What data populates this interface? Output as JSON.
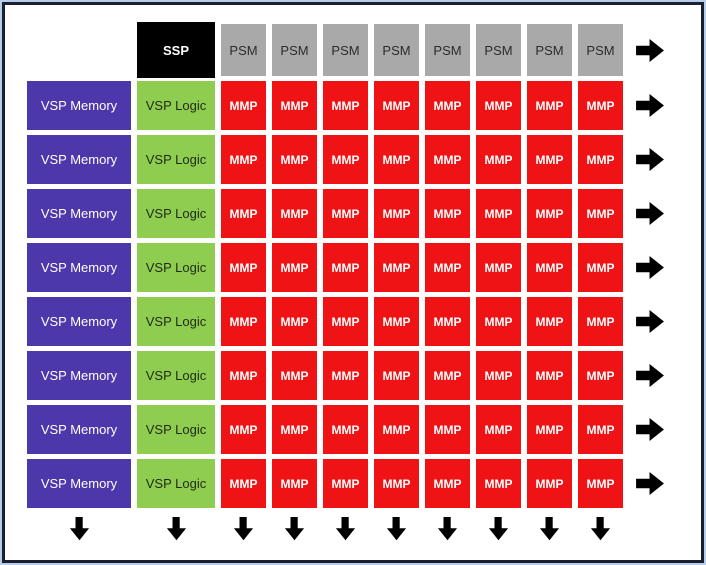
{
  "diagram": {
    "header_row": {
      "ssp_label": "SSP",
      "psm_labels": [
        "PSM",
        "PSM",
        "PSM",
        "PSM",
        "PSM",
        "PSM",
        "PSM",
        "PSM"
      ]
    },
    "body_rows": [
      {
        "memory": "VSP Memory",
        "logic": "VSP Logic",
        "mmp": [
          "MMP",
          "MMP",
          "MMP",
          "MMP",
          "MMP",
          "MMP",
          "MMP",
          "MMP"
        ]
      },
      {
        "memory": "VSP Memory",
        "logic": "VSP Logic",
        "mmp": [
          "MMP",
          "MMP",
          "MMP",
          "MMP",
          "MMP",
          "MMP",
          "MMP",
          "MMP"
        ]
      },
      {
        "memory": "VSP Memory",
        "logic": "VSP Logic",
        "mmp": [
          "MMP",
          "MMP",
          "MMP",
          "MMP",
          "MMP",
          "MMP",
          "MMP",
          "MMP"
        ]
      },
      {
        "memory": "VSP Memory",
        "logic": "VSP Logic",
        "mmp": [
          "MMP",
          "MMP",
          "MMP",
          "MMP",
          "MMP",
          "MMP",
          "MMP",
          "MMP"
        ]
      },
      {
        "memory": "VSP Memory",
        "logic": "VSP Logic",
        "mmp": [
          "MMP",
          "MMP",
          "MMP",
          "MMP",
          "MMP",
          "MMP",
          "MMP",
          "MMP"
        ]
      },
      {
        "memory": "VSP Memory",
        "logic": "VSP Logic",
        "mmp": [
          "MMP",
          "MMP",
          "MMP",
          "MMP",
          "MMP",
          "MMP",
          "MMP",
          "MMP"
        ]
      },
      {
        "memory": "VSP Memory",
        "logic": "VSP Logic",
        "mmp": [
          "MMP",
          "MMP",
          "MMP",
          "MMP",
          "MMP",
          "MMP",
          "MMP",
          "MMP"
        ]
      },
      {
        "memory": "VSP Memory",
        "logic": "VSP Logic",
        "mmp": [
          "MMP",
          "MMP",
          "MMP",
          "MMP",
          "MMP",
          "MMP",
          "MMP",
          "MMP"
        ]
      }
    ],
    "arrows": {
      "right_arrow_count": 9,
      "down_arrow_count": 10,
      "right_arrow_icon": "right-arrow-icon",
      "down_arrow_icon": "down-arrow-icon"
    },
    "colors": {
      "ssp_bg": "#000000",
      "psm_bg": "#a9a9a9",
      "memory_bg": "#4c38aa",
      "logic_bg": "#8fcd50",
      "mmp_bg": "#ef1315",
      "arrow": "#000000",
      "frame_outer": "#b7cdea",
      "frame_inner": "#1a2032",
      "background": "#ffffff"
    }
  }
}
